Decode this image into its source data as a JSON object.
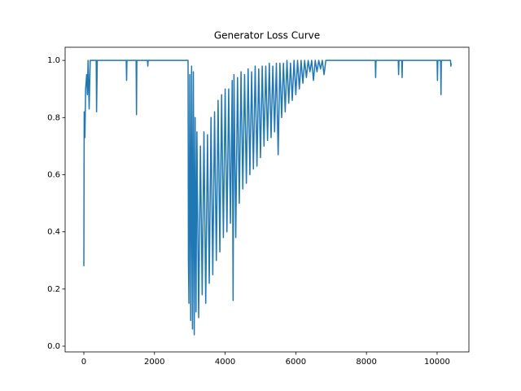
{
  "chart_data": {
    "type": "line",
    "title": "Generator Loss Curve",
    "x": [
      0,
      10,
      30,
      50,
      80,
      100,
      120,
      150,
      180,
      350,
      360,
      380,
      1200,
      1210,
      1220,
      1480,
      1490,
      1500,
      1800,
      1810,
      1820,
      2950,
      2960,
      2975,
      3000,
      3025,
      3050,
      3075,
      3100,
      3125,
      3150,
      3175,
      3200,
      3250,
      3300,
      3350,
      3400,
      3450,
      3500,
      3550,
      3600,
      3650,
      3700,
      3750,
      3800,
      3850,
      3900,
      3950,
      4000,
      4050,
      4100,
      4150,
      4200,
      4225,
      4250,
      4300,
      4350,
      4400,
      4450,
      4500,
      4550,
      4600,
      4650,
      4700,
      4750,
      4800,
      4850,
      4900,
      4950,
      5000,
      5050,
      5100,
      5150,
      5200,
      5250,
      5300,
      5350,
      5400,
      5450,
      5500,
      5550,
      5600,
      5650,
      5700,
      5750,
      5800,
      5850,
      5900,
      5950,
      6000,
      6050,
      6100,
      6150,
      6200,
      6250,
      6300,
      6350,
      6400,
      6450,
      6500,
      6550,
      6600,
      6650,
      6700,
      6750,
      6800,
      6850,
      8250,
      8260,
      8270,
      8900,
      8910,
      8920,
      9000,
      9010,
      9020,
      10000,
      10010,
      10020,
      10100,
      10110,
      10120,
      10380,
      10390,
      10400
    ],
    "series": [
      {
        "color": "#1f77b4",
        "values": [
          0.28,
          0.82,
          0.73,
          0.9,
          0.95,
          0.88,
          1.0,
          0.83,
          1.0,
          1.0,
          0.82,
          1.0,
          1.0,
          0.93,
          1.0,
          1.0,
          0.81,
          1.0,
          1.0,
          0.98,
          1.0,
          1.0,
          0.3,
          0.15,
          0.95,
          0.09,
          0.98,
          0.06,
          0.96,
          0.04,
          0.8,
          0.12,
          0.75,
          0.1,
          0.7,
          0.18,
          0.75,
          0.15,
          0.74,
          0.22,
          0.8,
          0.25,
          0.82,
          0.3,
          0.86,
          0.33,
          0.88,
          0.38,
          0.9,
          0.4,
          0.9,
          0.43,
          0.93,
          0.16,
          0.95,
          0.38,
          0.94,
          0.5,
          0.96,
          0.55,
          0.95,
          0.57,
          0.97,
          0.6,
          0.96,
          0.62,
          0.98,
          0.63,
          0.97,
          0.66,
          0.98,
          0.7,
          0.98,
          0.72,
          0.99,
          0.73,
          0.98,
          0.75,
          0.99,
          0.67,
          0.99,
          0.8,
          0.99,
          0.82,
          1.0,
          0.85,
          0.99,
          0.86,
          1.0,
          0.88,
          1.0,
          0.9,
          1.0,
          0.92,
          1.0,
          0.94,
          1.0,
          0.96,
          1.0,
          0.93,
          1.0,
          0.96,
          1.0,
          0.97,
          1.0,
          0.95,
          1.0,
          1.0,
          0.94,
          1.0,
          1.0,
          0.95,
          1.0,
          1.0,
          0.94,
          1.0,
          1.0,
          0.93,
          1.0,
          1.0,
          0.88,
          1.0,
          1.0,
          0.98,
          0.99
        ]
      }
    ],
    "xlim": [
      -530,
      10900
    ],
    "ylim": [
      -0.02,
      1.046
    ],
    "xticks": [
      0,
      2000,
      4000,
      6000,
      8000,
      10000
    ],
    "yticks": [
      {
        "value": 0,
        "label": "0.0"
      },
      0.2,
      0.4,
      0.6,
      0.8,
      {
        "value": 1,
        "label": "1.0"
      }
    ]
  }
}
